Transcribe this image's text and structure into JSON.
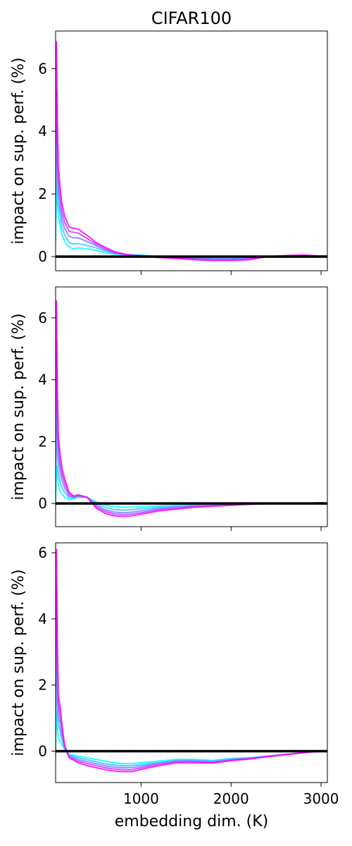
{
  "figure_title": "CIFAR100",
  "chart_data": [
    {
      "type": "line",
      "title": "CIFAR100",
      "xlabel": "",
      "ylabel": "impact on sup. perf. (%)",
      "xlim": [
        50,
        3070
      ],
      "ylim": [
        -0.45,
        7.2
      ],
      "yticks": [
        0,
        2,
        4,
        6
      ],
      "xticks": [
        1000,
        2000,
        3000
      ],
      "show_xticklabels": false,
      "grid": false,
      "color_start": "#00ffff",
      "color_end": "#ff00ff",
      "reference_line": {
        "y": 0,
        "color": "#000000"
      },
      "series": [
        {
          "x": [
            50,
            55,
            60,
            70,
            80,
            100,
            120,
            150,
            200,
            250,
            300,
            400,
            500,
            600,
            700,
            800,
            900,
            1000,
            1200,
            1400,
            1600,
            1800,
            2000,
            2200,
            2400,
            2600,
            2800,
            3000,
            3070
          ],
          "y": [
            0.5,
            1.5,
            2.2,
            1.8,
            1.3,
            1.0,
            0.7,
            0.5,
            0.3,
            0.25,
            0.28,
            0.25,
            0.2,
            0.12,
            0.08,
            0.06,
            0.06,
            0.05,
            0.0,
            -0.02,
            -0.04,
            -0.05,
            -0.06,
            -0.04,
            0.0,
            0.02,
            0.03,
            0.02,
            0.02
          ]
        },
        {
          "x": [
            50,
            55,
            60,
            70,
            80,
            100,
            120,
            150,
            200,
            250,
            300,
            400,
            500,
            600,
            700,
            800,
            900,
            1000,
            1200,
            1400,
            1600,
            1800,
            2000,
            2200,
            2400,
            2600,
            2800,
            3000,
            3070
          ],
          "y": [
            1.2,
            2.3,
            3.2,
            2.4,
            1.7,
            1.3,
            0.95,
            0.7,
            0.45,
            0.4,
            0.42,
            0.35,
            0.28,
            0.18,
            0.1,
            0.07,
            0.06,
            0.04,
            0.0,
            -0.03,
            -0.05,
            -0.06,
            -0.07,
            -0.05,
            0.0,
            0.02,
            0.03,
            0.02,
            0.02
          ]
        },
        {
          "x": [
            50,
            55,
            60,
            70,
            80,
            100,
            120,
            150,
            200,
            250,
            300,
            400,
            500,
            600,
            700,
            800,
            900,
            1000,
            1200,
            1400,
            1600,
            1800,
            2000,
            2200,
            2400,
            2600,
            2800,
            3000,
            3070
          ],
          "y": [
            2.0,
            3.1,
            4.2,
            3.0,
            2.1,
            1.6,
            1.2,
            0.9,
            0.65,
            0.6,
            0.6,
            0.48,
            0.35,
            0.22,
            0.12,
            0.08,
            0.05,
            0.03,
            -0.01,
            -0.04,
            -0.06,
            -0.08,
            -0.08,
            -0.06,
            0.0,
            0.02,
            0.04,
            0.02,
            0.02
          ]
        },
        {
          "x": [
            50,
            55,
            60,
            70,
            80,
            100,
            120,
            150,
            200,
            250,
            300,
            400,
            500,
            600,
            700,
            800,
            900,
            1000,
            1200,
            1400,
            1600,
            1800,
            2000,
            2200,
            2400,
            2600,
            2800,
            3000,
            3070
          ],
          "y": [
            2.8,
            4.0,
            5.3,
            3.6,
            2.5,
            1.9,
            1.45,
            1.1,
            0.8,
            0.78,
            0.75,
            0.58,
            0.4,
            0.26,
            0.14,
            0.08,
            0.04,
            0.02,
            -0.02,
            -0.05,
            -0.08,
            -0.1,
            -0.1,
            -0.08,
            0.0,
            0.03,
            0.04,
            0.02,
            0.02
          ]
        },
        {
          "x": [
            50,
            55,
            60,
            70,
            80,
            100,
            120,
            150,
            200,
            250,
            300,
            400,
            500,
            600,
            700,
            800,
            900,
            1000,
            1200,
            1400,
            1600,
            1800,
            2000,
            2200,
            2400,
            2600,
            2800,
            3000,
            3070
          ],
          "y": [
            3.5,
            5.2,
            6.85,
            4.3,
            2.9,
            2.2,
            1.7,
            1.3,
            0.95,
            0.9,
            0.88,
            0.68,
            0.45,
            0.3,
            0.16,
            0.09,
            0.03,
            0.01,
            -0.03,
            -0.06,
            -0.1,
            -0.12,
            -0.12,
            -0.1,
            0.0,
            0.03,
            0.05,
            0.02,
            0.02
          ]
        }
      ]
    },
    {
      "type": "line",
      "title": "",
      "xlabel": "",
      "ylabel": "impact on sup. perf. (%)",
      "xlim": [
        50,
        3070
      ],
      "ylim": [
        -0.75,
        7.0
      ],
      "yticks": [
        0,
        2,
        4,
        6
      ],
      "xticks": [
        1000,
        2000,
        3000
      ],
      "show_xticklabels": false,
      "grid": false,
      "color_start": "#00ffff",
      "color_end": "#ff00ff",
      "reference_line": {
        "y": 0,
        "color": "#000000"
      },
      "series": [
        {
          "x": [
            50,
            55,
            60,
            70,
            80,
            100,
            120,
            150,
            200,
            250,
            300,
            400,
            500,
            600,
            700,
            800,
            900,
            1000,
            1200,
            1400,
            1600,
            1800,
            2000,
            2200,
            2400,
            2600,
            2800,
            3000,
            3070
          ],
          "y": [
            -0.1,
            0.8,
            1.2,
            0.9,
            0.6,
            0.4,
            0.3,
            0.2,
            0.12,
            0.15,
            0.2,
            0.2,
            0.05,
            -0.05,
            -0.1,
            -0.12,
            -0.12,
            -0.1,
            -0.08,
            -0.06,
            -0.04,
            -0.03,
            -0.02,
            -0.02,
            -0.01,
            0.0,
            0.01,
            0.02,
            0.01
          ]
        },
        {
          "x": [
            50,
            55,
            60,
            70,
            80,
            100,
            120,
            150,
            200,
            250,
            300,
            400,
            500,
            600,
            700,
            800,
            900,
            1000,
            1200,
            1400,
            1600,
            1800,
            2000,
            2200,
            2400,
            2600,
            2800,
            3000,
            3070
          ],
          "y": [
            0.5,
            1.8,
            2.5,
            1.6,
            1.0,
            0.7,
            0.5,
            0.35,
            0.18,
            0.18,
            0.22,
            0.2,
            0.0,
            -0.12,
            -0.2,
            -0.22,
            -0.2,
            -0.17,
            -0.12,
            -0.09,
            -0.06,
            -0.05,
            -0.03,
            -0.02,
            -0.01,
            0.0,
            0.01,
            0.02,
            0.01
          ]
        },
        {
          "x": [
            50,
            55,
            60,
            70,
            80,
            100,
            120,
            150,
            200,
            250,
            300,
            400,
            500,
            600,
            700,
            800,
            900,
            1000,
            1200,
            1400,
            1600,
            1800,
            2000,
            2200,
            2400,
            2600,
            2800,
            3000,
            3070
          ],
          "y": [
            1.2,
            2.8,
            3.8,
            2.3,
            1.5,
            1.05,
            0.75,
            0.5,
            0.24,
            0.2,
            0.24,
            0.2,
            -0.05,
            -0.2,
            -0.28,
            -0.3,
            -0.28,
            -0.24,
            -0.16,
            -0.12,
            -0.08,
            -0.06,
            -0.04,
            -0.02,
            -0.01,
            0.0,
            0.01,
            0.02,
            0.01
          ]
        },
        {
          "x": [
            50,
            55,
            60,
            70,
            80,
            100,
            120,
            150,
            200,
            250,
            300,
            400,
            500,
            600,
            700,
            800,
            900,
            1000,
            1200,
            1400,
            1600,
            1800,
            2000,
            2200,
            2400,
            2600,
            2800,
            3000,
            3070
          ],
          "y": [
            2.0,
            3.8,
            5.2,
            3.0,
            1.9,
            1.35,
            0.95,
            0.65,
            0.3,
            0.22,
            0.26,
            0.2,
            -0.1,
            -0.26,
            -0.34,
            -0.36,
            -0.34,
            -0.3,
            -0.2,
            -0.15,
            -0.1,
            -0.08,
            -0.05,
            -0.03,
            -0.01,
            0.0,
            0.01,
            0.02,
            0.01
          ]
        },
        {
          "x": [
            50,
            55,
            60,
            70,
            80,
            100,
            120,
            150,
            200,
            250,
            300,
            400,
            500,
            600,
            700,
            800,
            900,
            1000,
            1200,
            1400,
            1600,
            1800,
            2000,
            2200,
            2400,
            2600,
            2800,
            3000,
            3070
          ],
          "y": [
            2.8,
            4.8,
            6.55,
            3.6,
            2.2,
            1.6,
            1.15,
            0.8,
            0.36,
            0.24,
            0.28,
            0.2,
            -0.15,
            -0.32,
            -0.4,
            -0.42,
            -0.4,
            -0.35,
            -0.24,
            -0.18,
            -0.12,
            -0.09,
            -0.06,
            -0.03,
            -0.01,
            0.0,
            0.01,
            0.02,
            0.01
          ]
        }
      ]
    },
    {
      "type": "line",
      "title": "",
      "xlabel": "embedding dim. (K)",
      "ylabel": "impact on sup. perf. (%)",
      "xlim": [
        50,
        3070
      ],
      "ylim": [
        -0.95,
        6.3
      ],
      "yticks": [
        0,
        2,
        4,
        6
      ],
      "xticks": [
        1000,
        2000,
        3000
      ],
      "show_xticklabels": true,
      "grid": false,
      "color_start": "#00ffff",
      "color_end": "#ff00ff",
      "reference_line": {
        "y": 0,
        "color": "#000000"
      },
      "series": [
        {
          "x": [
            50,
            55,
            60,
            70,
            80,
            100,
            120,
            150,
            200,
            300,
            400,
            500,
            600,
            700,
            800,
            900,
            1000,
            1200,
            1400,
            1600,
            1800,
            2000,
            2200,
            2400,
            2600,
            2800,
            2900,
            3000,
            3070
          ],
          "y": [
            -0.1,
            0.8,
            1.2,
            0.7,
            0.4,
            0.3,
            0.2,
            0.05,
            -0.1,
            -0.15,
            -0.2,
            -0.25,
            -0.3,
            -0.35,
            -0.38,
            -0.38,
            -0.35,
            -0.3,
            -0.25,
            -0.25,
            -0.28,
            -0.22,
            -0.2,
            -0.15,
            -0.1,
            -0.05,
            -0.02,
            -0.01,
            -0.01
          ]
        },
        {
          "x": [
            50,
            55,
            60,
            70,
            80,
            100,
            120,
            150,
            200,
            300,
            400,
            500,
            600,
            700,
            800,
            900,
            1000,
            1200,
            1400,
            1600,
            1800,
            2000,
            2200,
            2400,
            2600,
            2800,
            2900,
            3000,
            3070
          ],
          "y": [
            0.5,
            1.8,
            2.5,
            1.4,
            0.8,
            0.6,
            0.35,
            0.1,
            -0.12,
            -0.2,
            -0.26,
            -0.32,
            -0.38,
            -0.42,
            -0.44,
            -0.44,
            -0.4,
            -0.34,
            -0.28,
            -0.28,
            -0.3,
            -0.24,
            -0.21,
            -0.15,
            -0.1,
            -0.05,
            -0.02,
            -0.01,
            -0.01
          ]
        },
        {
          "x": [
            50,
            55,
            60,
            70,
            80,
            100,
            120,
            150,
            200,
            300,
            400,
            500,
            600,
            700,
            800,
            900,
            1000,
            1200,
            1400,
            1600,
            1800,
            2000,
            2200,
            2400,
            2600,
            2800,
            2900,
            3000,
            3070
          ],
          "y": [
            1.2,
            2.9,
            3.8,
            2.0,
            1.1,
            0.85,
            0.5,
            0.12,
            -0.15,
            -0.25,
            -0.32,
            -0.38,
            -0.44,
            -0.48,
            -0.5,
            -0.5,
            -0.45,
            -0.37,
            -0.3,
            -0.3,
            -0.32,
            -0.26,
            -0.22,
            -0.16,
            -0.1,
            -0.05,
            -0.02,
            -0.01,
            -0.01
          ]
        },
        {
          "x": [
            50,
            55,
            60,
            70,
            80,
            100,
            120,
            150,
            200,
            300,
            400,
            500,
            600,
            700,
            800,
            900,
            1000,
            1200,
            1400,
            1600,
            1800,
            2000,
            2200,
            2400,
            2600,
            2800,
            2900,
            3000,
            3070
          ],
          "y": [
            2.0,
            3.8,
            5.0,
            2.6,
            1.4,
            1.1,
            0.65,
            0.15,
            -0.18,
            -0.3,
            -0.38,
            -0.44,
            -0.5,
            -0.54,
            -0.56,
            -0.56,
            -0.5,
            -0.4,
            -0.32,
            -0.32,
            -0.34,
            -0.27,
            -0.23,
            -0.16,
            -0.1,
            -0.05,
            -0.02,
            -0.01,
            -0.01
          ]
        },
        {
          "x": [
            50,
            55,
            60,
            70,
            80,
            100,
            120,
            150,
            200,
            300,
            400,
            500,
            600,
            700,
            800,
            900,
            1000,
            1200,
            1400,
            1600,
            1800,
            2000,
            2200,
            2400,
            2600,
            2800,
            2900,
            3000,
            3070
          ],
          "y": [
            2.8,
            4.6,
            6.1,
            3.2,
            1.7,
            1.35,
            0.8,
            0.18,
            -0.2,
            -0.35,
            -0.44,
            -0.5,
            -0.56,
            -0.6,
            -0.62,
            -0.62,
            -0.55,
            -0.44,
            -0.35,
            -0.35,
            -0.36,
            -0.29,
            -0.24,
            -0.17,
            -0.11,
            -0.05,
            -0.02,
            -0.01,
            -0.01
          ]
        }
      ]
    }
  ]
}
